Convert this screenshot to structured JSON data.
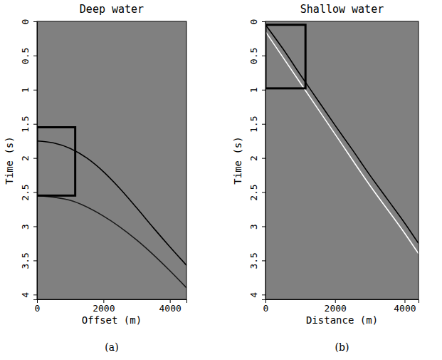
{
  "chart_data": [
    {
      "type": "line",
      "title": "Deep water",
      "x_label": "Offset (m)",
      "y_label": "Time (s)",
      "caption": "(a)",
      "xlim": [
        0,
        4500
      ],
      "ylim": [
        0,
        4.07
      ],
      "xticks": [
        0,
        2000,
        4000
      ],
      "yticks": [
        0,
        0.5,
        1,
        1.5,
        2,
        2.5,
        3,
        3.5,
        4
      ],
      "series": [
        {
          "color": "#000000",
          "x": [
            0,
            500,
            1000,
            1500,
            2000,
            2500,
            3000,
            3500,
            4000,
            4500
          ],
          "values": [
            1.75,
            1.78,
            1.86,
            2.0,
            2.2,
            2.45,
            2.73,
            3.02,
            3.3,
            3.57
          ]
        },
        {
          "color": "#1a1a1a",
          "x": [
            0,
            1000,
            2000,
            3000,
            4000,
            4500
          ],
          "values": [
            2.55,
            2.62,
            2.85,
            3.2,
            3.65,
            3.9
          ]
        }
      ],
      "box": {
        "x": [
          0,
          1150
        ],
        "y": [
          1.55,
          2.55
        ]
      }
    },
    {
      "type": "line",
      "title": "Shallow water",
      "x_label": "Distance (m)",
      "y_label": "Time (s)",
      "caption": "(b)",
      "xlim": [
        0,
        4400
      ],
      "ylim": [
        0,
        4.07
      ],
      "xticks": [
        0,
        2000,
        4000
      ],
      "yticks": [
        0,
        0.5,
        1,
        1.5,
        2,
        2.5,
        3,
        3.5,
        4
      ],
      "series": [
        {
          "color": "#000000",
          "x": [
            0,
            500,
            1000,
            1500,
            2000,
            2500,
            3000,
            3500,
            4000,
            4400
          ],
          "values": [
            0.05,
            0.4,
            0.78,
            1.15,
            1.52,
            1.88,
            2.25,
            2.6,
            2.95,
            3.25
          ]
        },
        {
          "color": "#ffffff",
          "x": [
            0,
            1000,
            2000,
            3000,
            4000,
            4400
          ],
          "values": [
            0.15,
            0.9,
            1.65,
            2.4,
            3.1,
            3.4
          ]
        }
      ],
      "box": {
        "x": [
          0,
          1150
        ],
        "y": [
          0.05,
          0.98
        ]
      }
    }
  ]
}
